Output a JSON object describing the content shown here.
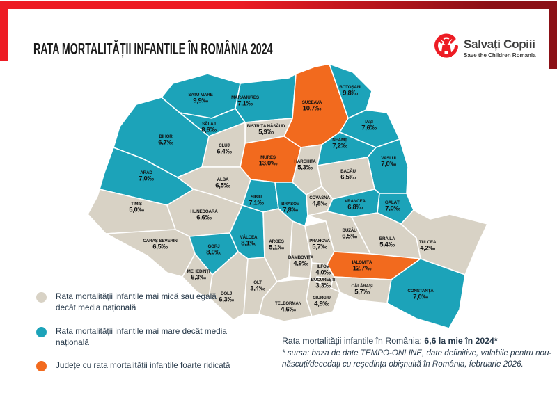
{
  "header": {
    "title": "RATA MORTALITĂȚII INFANTILE ÎN ROMÂNIA 2024",
    "logo_title": "Salvați Copiii",
    "logo_subtitle": "Save the Children Romania"
  },
  "legend": {
    "items": [
      {
        "category": "lower",
        "label": "Rata mortalității infantile mai mică sau egală decât media națională"
      },
      {
        "category": "higher",
        "label": "Rata mortalității infantile mai mare decât media națională"
      },
      {
        "category": "very_high",
        "label": "Județe cu rata mortalității infantile foarte ridicată"
      }
    ]
  },
  "footer": {
    "stat_label": "Rata mortalității infantile în România: ",
    "stat_value": "6,6 la mie în 2024*",
    "source_note": "* sursa: baza de date TEMPO-ONLINE, date definitive, valabile pentru nou-născuți/decedați cu reședința obișnuită în România, februarie 2026."
  },
  "colors": {
    "lower": "#D8D2C5",
    "higher": "#1CA3B9",
    "very_high": "#F26A1E",
    "frame_red": "#ED1C24",
    "frame_dark_red": "#8B1016",
    "label_text": "#121212",
    "body_text": "#27394a"
  },
  "chart_data": {
    "type": "choropleth-map",
    "region": "Romania",
    "title": "Rata mortalității infantile în România 2024",
    "unit": "‰",
    "national_average_2024": 6.6,
    "legend_position": "bottom-left",
    "counties": [
      {
        "id": "satu-mare",
        "name": "SATU MARE",
        "value": "9,9",
        "value_num": 9.9,
        "category": "higher"
      },
      {
        "id": "maramures",
        "name": "MARAMUREȘ",
        "value": "7,1",
        "value_num": 7.1,
        "category": "higher"
      },
      {
        "id": "suceava",
        "name": "SUCEAVA",
        "value": "10,7",
        "value_num": 10.7,
        "category": "very_high"
      },
      {
        "id": "botosani",
        "name": "BOTOȘANI",
        "value": "9,8",
        "value_num": 9.8,
        "category": "higher"
      },
      {
        "id": "iasi",
        "name": "IAȘI",
        "value": "7,6",
        "value_num": 7.6,
        "category": "higher"
      },
      {
        "id": "salaj",
        "name": "SĂLAJ",
        "value": "8,6",
        "value_num": 8.6,
        "category": "higher"
      },
      {
        "id": "bistrita-nasaud",
        "name": "BISTRIȚA NĂSĂUD",
        "value": "5,9",
        "value_num": 5.9,
        "category": "lower"
      },
      {
        "id": "cluj",
        "name": "CLUJ",
        "value": "6,4",
        "value_num": 6.4,
        "category": "lower"
      },
      {
        "id": "mures",
        "name": "MUREȘ",
        "value": "13,0",
        "value_num": 13.0,
        "category": "very_high"
      },
      {
        "id": "harghita",
        "name": "HARGHITA",
        "value": "5,3",
        "value_num": 5.3,
        "category": "lower"
      },
      {
        "id": "neamt",
        "name": "NEAMȚ",
        "value": "7,2",
        "value_num": 7.2,
        "category": "higher"
      },
      {
        "id": "vaslui",
        "name": "VASLUI",
        "value": "7,0",
        "value_num": 7.0,
        "category": "higher"
      },
      {
        "id": "bacau",
        "name": "BACĂU",
        "value": "6,5",
        "value_num": 6.5,
        "category": "lower"
      },
      {
        "id": "bihor",
        "name": "BIHOR",
        "value": "6,7",
        "value_num": 6.7,
        "category": "higher"
      },
      {
        "id": "arad",
        "name": "ARAD",
        "value": "7,0",
        "value_num": 7.0,
        "category": "higher"
      },
      {
        "id": "alba",
        "name": "ALBA",
        "value": "6,5",
        "value_num": 6.5,
        "category": "lower"
      },
      {
        "id": "timis",
        "name": "TIMIȘ",
        "value": "5,0",
        "value_num": 5.0,
        "category": "lower"
      },
      {
        "id": "hunedoara",
        "name": "HUNEDOARA",
        "value": "6,6",
        "value_num": 6.6,
        "category": "lower"
      },
      {
        "id": "sibiu",
        "name": "SIBIU",
        "value": "7,1",
        "value_num": 7.1,
        "category": "higher"
      },
      {
        "id": "brasov",
        "name": "BRAȘOV",
        "value": "7,8",
        "value_num": 7.8,
        "category": "higher"
      },
      {
        "id": "covasna",
        "name": "COVASNA",
        "value": "4,8",
        "value_num": 4.8,
        "category": "lower"
      },
      {
        "id": "vrancea",
        "name": "VRANCEA",
        "value": "6,8",
        "value_num": 6.8,
        "category": "higher"
      },
      {
        "id": "galati",
        "name": "GALAȚI",
        "value": "7,0",
        "value_num": 7.0,
        "category": "higher"
      },
      {
        "id": "caras-severin",
        "name": "CARAȘ SEVERIN",
        "value": "6,5",
        "value_num": 6.5,
        "category": "lower"
      },
      {
        "id": "gorj",
        "name": "GORJ",
        "value": "8,0",
        "value_num": 8.0,
        "category": "higher"
      },
      {
        "id": "valcea",
        "name": "VÂLCEA",
        "value": "8,1",
        "value_num": 8.1,
        "category": "higher"
      },
      {
        "id": "arges",
        "name": "ARGEȘ",
        "value": "5,1",
        "value_num": 5.1,
        "category": "lower"
      },
      {
        "id": "mehedinti",
        "name": "MEHEDINȚI",
        "value": "6,3",
        "value_num": 6.3,
        "category": "lower"
      },
      {
        "id": "dolj",
        "name": "DOLJ",
        "value": "6,3",
        "value_num": 6.3,
        "category": "lower"
      },
      {
        "id": "olt",
        "name": "OLT",
        "value": "3,4",
        "value_num": 3.4,
        "category": "lower"
      },
      {
        "id": "teleorman",
        "name": "TELEORMAN",
        "value": "4,6",
        "value_num": 4.6,
        "category": "lower"
      },
      {
        "id": "dambovita",
        "name": "DÂMBOVIȚA",
        "value": "4,9",
        "value_num": 4.9,
        "category": "lower"
      },
      {
        "id": "prahova",
        "name": "PRAHOVA",
        "value": "5,7",
        "value_num": 5.7,
        "category": "lower"
      },
      {
        "id": "buzau",
        "name": "BUZĂU",
        "value": "6,5",
        "value_num": 6.5,
        "category": "lower"
      },
      {
        "id": "braila",
        "name": "BRĂILA",
        "value": "5,4",
        "value_num": 5.4,
        "category": "lower"
      },
      {
        "id": "ilfov",
        "name": "ILFOV",
        "value": "4,0",
        "value_num": 4.0,
        "category": "lower"
      },
      {
        "id": "bucuresti",
        "name": "BUCUREȘTI",
        "value": "3,3",
        "value_num": 3.3,
        "category": "lower"
      },
      {
        "id": "ialomita",
        "name": "IALOMIȚA",
        "value": "12,7",
        "value_num": 12.7,
        "category": "very_high"
      },
      {
        "id": "calarasi",
        "name": "CĂLĂRAȘI",
        "value": "5,7",
        "value_num": 5.7,
        "category": "lower"
      },
      {
        "id": "giurgiu",
        "name": "GIURGIU",
        "value": "4,9",
        "value_num": 4.9,
        "category": "lower"
      },
      {
        "id": "tulcea",
        "name": "TULCEA",
        "value": "4,2",
        "value_num": 4.2,
        "category": "lower"
      },
      {
        "id": "constanta",
        "name": "CONSTANȚA",
        "value": "7,0",
        "value_num": 7.0,
        "category": "higher"
      }
    ]
  }
}
